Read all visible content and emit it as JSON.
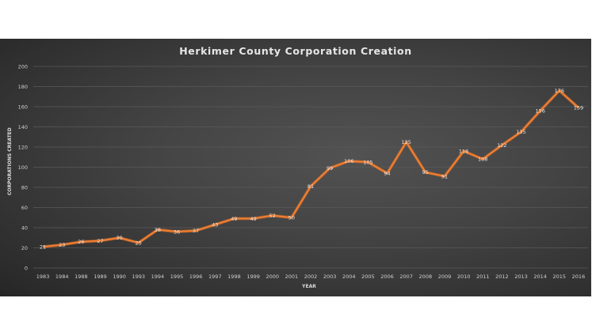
{
  "chart_data": {
    "type": "line",
    "title": "Herkimer County Corporation Creation",
    "xlabel": "YEAR",
    "ylabel": "CORPORATIONS CREATED",
    "categories": [
      "1983",
      "1984",
      "1988",
      "1989",
      "1990",
      "1993",
      "1994",
      "1995",
      "1996",
      "1997",
      "1998",
      "1999",
      "2000",
      "2001",
      "2002",
      "2003",
      "2004",
      "2005",
      "2006",
      "2007",
      "2008",
      "2009",
      "2010",
      "2011",
      "2012",
      "2013",
      "2014",
      "2015",
      "2016"
    ],
    "series": [
      {
        "name": "Corporations Created",
        "color": "#ed7d31",
        "values": [
          21,
          23,
          26,
          27,
          30,
          25,
          38,
          36,
          37,
          43,
          49,
          49,
          52,
          50,
          81,
          99,
          106,
          105,
          94,
          125,
          95,
          91,
          116,
          108,
          122,
          135,
          156,
          176,
          159
        ]
      }
    ],
    "ylim": [
      0,
      200
    ],
    "yticks": [
      0,
      20,
      40,
      60,
      80,
      100,
      120,
      140,
      160,
      180,
      200
    ],
    "grid": true,
    "data_labels": true,
    "legend": "none",
    "background": "#3a3a3a"
  }
}
